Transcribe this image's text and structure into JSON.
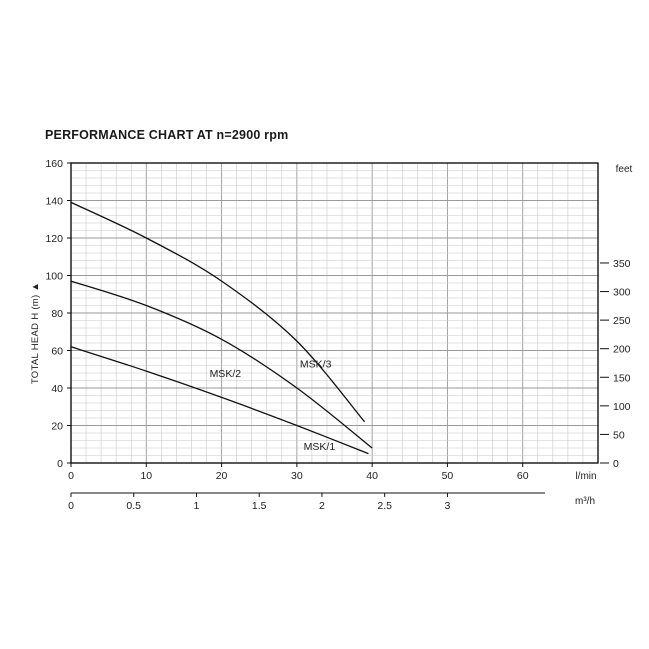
{
  "title": "PERFORMANCE CHART AT n=2900 rpm",
  "chart_data": {
    "type": "line",
    "title": "PERFORMANCE CHART AT n=2900 rpm",
    "ylabel": "TOTAL HEAD H (m)",
    "ylabel_arrow": "▲",
    "ylim": [
      0,
      160
    ],
    "y_ticks": [
      0,
      20,
      40,
      60,
      80,
      100,
      120,
      140,
      160
    ],
    "xlim": [
      0,
      70
    ],
    "x_ticks": [
      0,
      10,
      20,
      30,
      40,
      50,
      60
    ],
    "x_unit": "l/min",
    "x2_ticks": [
      0,
      0.5,
      1,
      1.5,
      2,
      2.5,
      3
    ],
    "x2_tick_labels": [
      "0",
      "0.5",
      "1",
      "1.5",
      "2",
      "2.5",
      "3"
    ],
    "x2_unit": "m³/h",
    "y2_ticks": [
      0,
      50,
      100,
      150,
      200,
      250,
      300,
      350
    ],
    "y2_unit": "feet",
    "grid": true,
    "series": [
      {
        "name": "MSK/3",
        "points": [
          [
            0,
            139
          ],
          [
            10,
            120
          ],
          [
            20,
            97
          ],
          [
            30,
            65
          ],
          [
            39,
            22
          ]
        ]
      },
      {
        "name": "MSK/2",
        "points": [
          [
            0,
            97
          ],
          [
            10,
            84
          ],
          [
            20,
            66
          ],
          [
            30,
            40
          ],
          [
            40,
            8
          ]
        ]
      },
      {
        "name": "MSK/1",
        "points": [
          [
            0,
            62
          ],
          [
            10,
            49
          ],
          [
            20,
            35
          ],
          [
            30,
            20
          ],
          [
            39.5,
            5
          ]
        ]
      }
    ]
  }
}
